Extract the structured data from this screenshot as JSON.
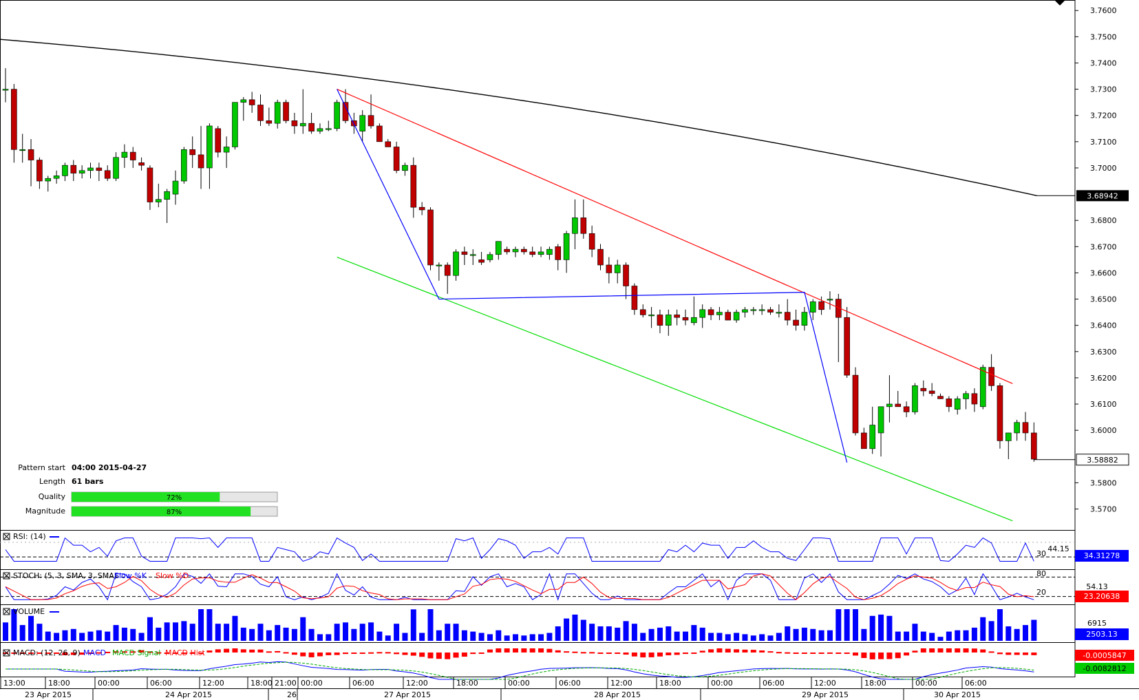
{
  "instrument_note": "",
  "info_panel": {
    "pattern_start_label": "Pattern start",
    "pattern_start_value": "04:00 2015-04-27",
    "length_label": "Length",
    "length_value": "61 bars",
    "quality_label": "Quality",
    "quality_value": "72%",
    "quality_fraction": 0.72,
    "magnitude_label": "Magnitude",
    "magnitude_value": "87%",
    "magnitude_fraction": 0.87
  },
  "price_axis": {
    "ticks": [
      "3.7600",
      "3.7500",
      "3.7400",
      "3.7300",
      "3.7200",
      "3.7100",
      "3.7000",
      "3.6800",
      "3.6700",
      "3.6600",
      "3.6500",
      "3.6400",
      "3.6300",
      "3.6200",
      "3.6100",
      "3.6000",
      "3.5800",
      "3.5700"
    ],
    "ma_label": "3.68942",
    "last_price_label": "3.58882"
  },
  "panes": {
    "rsi": {
      "title": "RSI: (14)",
      "level_low": "30",
      "level_high": "44.15",
      "value": "34.31278"
    },
    "stoch": {
      "title": "STOCH: (5, 3, SMA, 3, SMA)",
      "k_label": "Slow %K",
      "d_label": "Slow %D",
      "level_high": "80",
      "level_mid": "54.13",
      "level_low": "20",
      "value": "23.20638"
    },
    "volume": {
      "title": "VOLUME",
      "max_label": "6915",
      "value": "2503.13"
    },
    "macd": {
      "title": "MACD: (12, 26, 9)",
      "legend_macd": "MACD",
      "legend_signal": "MACD Signal",
      "legend_hist": "MACD Hist",
      "value_top": "-0.0005847",
      "value_bottom": "-0.0082812"
    }
  },
  "time_axis": {
    "labels": [
      "13:00",
      "18:00",
      "00:00",
      "06:00",
      "12:00",
      "18:00",
      "21:00",
      "00:00",
      "06:00",
      "12:00",
      "18:00",
      "00:00",
      "06:00",
      "12:00",
      "18:00",
      "00:00",
      "06:00",
      "12:00",
      "18:00",
      "00:00",
      "06:00"
    ],
    "dates": [
      "23 Apr 2015",
      "24 Apr 2015",
      "26",
      "27 Apr 2015",
      "28 Apr 2015",
      "29 Apr 2015",
      "30 Apr 2015"
    ]
  },
  "colors": {
    "bull": "#00c800",
    "bear": "#c00000",
    "ma": "#000000",
    "upper_channel": "#ff0000",
    "lower_channel": "#00dd00",
    "pattern": "#0000ff"
  },
  "chart_data": {
    "type": "candlestick",
    "y_range": [
      3.562,
      3.764
    ],
    "ma_value": 3.68942,
    "last_price": 3.58882,
    "candles": [
      [
        3.73,
        3.738,
        3.725,
        3.73
      ],
      [
        3.73,
        3.732,
        3.702,
        3.707
      ],
      [
        3.707,
        3.713,
        3.702,
        3.707
      ],
      [
        3.707,
        3.711,
        3.693,
        3.703
      ],
      [
        3.703,
        3.704,
        3.692,
        3.695
      ],
      [
        3.695,
        3.697,
        3.691,
        3.696
      ],
      [
        3.696,
        3.699,
        3.694,
        3.697
      ],
      [
        3.697,
        3.702,
        3.695,
        3.701
      ],
      [
        3.701,
        3.703,
        3.695,
        3.698
      ],
      [
        3.698,
        3.701,
        3.696,
        3.699
      ],
      [
        3.699,
        3.702,
        3.696,
        3.7
      ],
      [
        3.7,
        3.702,
        3.695,
        3.699
      ],
      [
        3.699,
        3.701,
        3.695,
        3.696
      ],
      [
        3.696,
        3.706,
        3.695,
        3.704
      ],
      [
        3.704,
        3.709,
        3.7,
        3.706
      ],
      [
        3.706,
        3.708,
        3.7,
        3.703
      ],
      [
        3.702,
        3.704,
        3.699,
        3.701
      ],
      [
        3.7,
        3.701,
        3.684,
        3.687
      ],
      [
        3.687,
        3.694,
        3.685,
        3.688
      ],
      [
        3.688,
        3.692,
        3.679,
        3.691
      ],
      [
        3.69,
        3.699,
        3.686,
        3.695
      ],
      [
        3.695,
        3.708,
        3.694,
        3.707
      ],
      [
        3.707,
        3.712,
        3.7,
        3.705
      ],
      [
        3.705,
        3.716,
        3.692,
        3.7
      ],
      [
        3.7,
        3.717,
        3.692,
        3.716
      ],
      [
        3.715,
        3.716,
        3.704,
        3.706
      ],
      [
        3.706,
        3.712,
        3.7,
        3.708
      ],
      [
        3.708,
        3.725,
        3.707,
        3.725
      ],
      [
        3.725,
        3.727,
        3.718,
        3.726
      ],
      [
        3.726,
        3.729,
        3.721,
        3.724
      ],
      [
        3.724,
        3.728,
        3.716,
        3.718
      ],
      [
        3.718,
        3.723,
        3.716,
        3.717
      ],
      [
        3.717,
        3.726,
        3.715,
        3.725
      ],
      [
        3.725,
        3.726,
        3.717,
        3.718
      ],
      [
        3.718,
        3.721,
        3.713,
        3.716
      ],
      [
        3.716,
        3.73,
        3.713,
        3.717
      ],
      [
        3.717,
        3.721,
        3.713,
        3.714
      ],
      [
        3.714,
        3.717,
        3.713,
        3.715
      ],
      [
        3.715,
        3.718,
        3.714,
        3.715
      ],
      [
        3.715,
        3.726,
        3.714,
        3.725
      ],
      [
        3.725,
        3.73,
        3.717,
        3.718
      ],
      [
        3.718,
        3.721,
        3.713,
        3.716
      ],
      [
        3.714,
        3.722,
        3.71,
        3.72
      ],
      [
        3.72,
        3.728,
        3.715,
        3.716
      ],
      [
        3.716,
        3.717,
        3.711,
        3.71
      ],
      [
        3.71,
        3.711,
        3.708,
        3.708
      ],
      [
        3.708,
        3.71,
        3.698,
        3.699
      ],
      [
        3.699,
        3.702,
        3.697,
        3.701
      ],
      [
        3.701,
        3.704,
        3.681,
        3.685
      ],
      [
        3.685,
        3.687,
        3.682,
        3.684
      ],
      [
        3.684,
        3.685,
        3.661,
        3.663
      ],
      [
        3.663,
        3.664,
        3.657,
        3.663
      ],
      [
        3.663,
        3.664,
        3.652,
        3.659
      ],
      [
        3.659,
        3.669,
        3.657,
        3.668
      ],
      [
        3.668,
        3.67,
        3.663,
        3.667
      ],
      [
        3.667,
        3.669,
        3.663,
        3.667
      ],
      [
        3.665,
        3.668,
        3.663,
        3.664
      ],
      [
        3.665,
        3.668,
        3.664,
        3.667
      ],
      [
        3.667,
        3.672,
        3.665,
        3.672
      ],
      [
        3.669,
        3.67,
        3.667,
        3.668
      ],
      [
        3.668,
        3.67,
        3.666,
        3.669
      ],
      [
        3.669,
        3.67,
        3.667,
        3.668
      ],
      [
        3.668,
        3.67,
        3.666,
        3.667
      ],
      [
        3.667,
        3.67,
        3.666,
        3.668
      ],
      [
        3.667,
        3.67,
        3.665,
        3.669
      ],
      [
        3.67,
        3.671,
        3.661,
        3.665
      ],
      [
        3.665,
        3.676,
        3.66,
        3.675
      ],
      [
        3.675,
        3.688,
        3.669,
        3.681
      ],
      [
        3.681,
        3.688,
        3.673,
        3.675
      ],
      [
        3.675,
        3.678,
        3.666,
        3.669
      ],
      [
        3.669,
        3.671,
        3.661,
        3.663
      ],
      [
        3.663,
        3.666,
        3.656,
        3.66
      ],
      [
        3.66,
        3.665,
        3.656,
        3.663
      ],
      [
        3.663,
        3.664,
        3.65,
        3.655
      ],
      [
        3.655,
        3.656,
        3.644,
        3.646
      ],
      [
        3.646,
        3.648,
        3.643,
        3.644
      ],
      [
        3.644,
        3.647,
        3.639,
        3.644
      ],
      [
        3.644,
        3.646,
        3.637,
        3.64
      ],
      [
        3.64,
        3.646,
        3.636,
        3.644
      ],
      [
        3.644,
        3.646,
        3.64,
        3.643
      ],
      [
        3.643,
        3.646,
        3.64,
        3.642
      ],
      [
        3.641,
        3.651,
        3.64,
        3.643
      ],
      [
        3.643,
        3.648,
        3.639,
        3.646
      ],
      [
        3.646,
        3.647,
        3.642,
        3.644
      ],
      [
        3.644,
        3.647,
        3.642,
        3.645
      ],
      [
        3.645,
        3.646,
        3.642,
        3.642
      ],
      [
        3.642,
        3.646,
        3.641,
        3.645
      ],
      [
        3.645,
        3.647,
        3.643,
        3.646
      ],
      [
        3.646,
        3.647,
        3.644,
        3.646
      ],
      [
        3.646,
        3.648,
        3.644,
        3.646
      ],
      [
        3.646,
        3.647,
        3.644,
        3.645
      ],
      [
        3.645,
        3.648,
        3.643,
        3.645
      ],
      [
        3.645,
        3.65,
        3.64,
        3.642
      ],
      [
        3.642,
        3.646,
        3.638,
        3.64
      ],
      [
        3.64,
        3.647,
        3.638,
        3.645
      ],
      [
        3.645,
        3.65,
        3.642,
        3.649
      ],
      [
        3.649,
        3.651,
        3.644,
        3.646
      ],
      [
        3.65,
        3.653,
        3.646,
        3.65
      ],
      [
        3.65,
        3.652,
        3.626,
        3.643
      ],
      [
        3.643,
        3.647,
        3.62,
        3.621
      ],
      [
        3.621,
        3.624,
        3.598,
        3.599
      ],
      [
        3.599,
        3.601,
        3.593,
        3.593
      ],
      [
        3.593,
        3.609,
        3.591,
        3.602
      ],
      [
        3.599,
        3.609,
        3.59,
        3.609
      ],
      [
        3.609,
        3.621,
        3.603,
        3.61
      ],
      [
        3.61,
        3.615,
        3.609,
        3.609
      ],
      [
        3.609,
        3.611,
        3.605,
        3.607
      ],
      [
        3.607,
        3.618,
        3.606,
        3.617
      ],
      [
        3.616,
        3.619,
        3.613,
        3.615
      ],
      [
        3.615,
        3.618,
        3.613,
        3.614
      ],
      [
        3.613,
        3.614,
        3.612,
        3.612
      ],
      [
        3.612,
        3.613,
        3.607,
        3.609
      ],
      [
        3.608,
        3.613,
        3.606,
        3.612
      ],
      [
        3.612,
        3.615,
        3.608,
        3.614
      ],
      [
        3.614,
        3.616,
        3.607,
        3.61
      ],
      [
        3.609,
        3.625,
        3.608,
        3.624
      ],
      [
        3.624,
        3.629,
        3.615,
        3.617
      ],
      [
        3.617,
        3.618,
        3.593,
        3.596
      ],
      [
        3.596,
        3.599,
        3.589,
        3.599
      ],
      [
        3.599,
        3.604,
        3.596,
        3.603
      ],
      [
        3.603,
        3.607,
        3.596,
        3.599
      ],
      [
        3.599,
        3.603,
        3.588,
        3.589
      ]
    ]
  }
}
